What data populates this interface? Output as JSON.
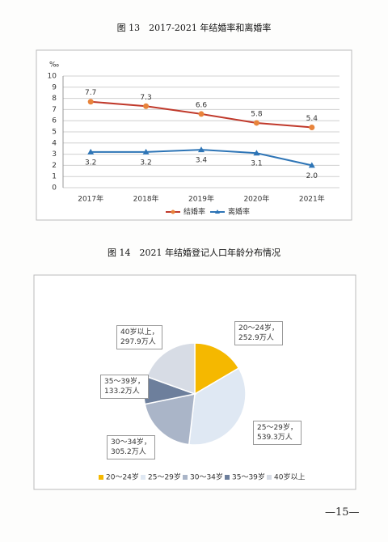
{
  "chart_data": [
    {
      "type": "line",
      "title": "图 13　2017-2021 年结婚率和离婚率",
      "y_unit": "‰",
      "categories": [
        "2017年",
        "2018年",
        "2019年",
        "2020年",
        "2021年"
      ],
      "series": [
        {
          "name": "结婚率",
          "color": "#c0392b",
          "marker_color": "#e8843c",
          "marker": "circle",
          "label_side": "above",
          "values": [
            7.7,
            7.3,
            6.6,
            5.8,
            5.4
          ]
        },
        {
          "name": "离婚率",
          "color": "#2e75b6",
          "marker_color": "#2e75b6",
          "marker": "triangle",
          "label_side": "below",
          "values": [
            3.2,
            3.2,
            3.4,
            3.1,
            2.0
          ],
          "value_labels": [
            "3.2",
            "3.2",
            "3.4",
            "3.1",
            "2.0"
          ]
        }
      ],
      "ylim": [
        0,
        10
      ],
      "yticks": [
        0,
        1,
        2,
        3,
        4,
        5,
        6,
        7,
        8,
        9,
        10
      ],
      "grid": true,
      "legend": "bottom"
    },
    {
      "type": "pie",
      "title": "图 14　2021 年结婚登记人口年龄分布情况",
      "categories": [
        "20～24岁",
        "25～29岁",
        "30～34岁",
        "35～39岁",
        "40岁以上"
      ],
      "values": [
        252.9,
        539.3,
        305.2,
        133.2,
        297.9
      ],
      "value_labels": [
        "20～24岁，\n252.9万人",
        "25～29岁，\n539.3万人",
        "30～34岁，\n305.2万人",
        "35～39岁，\n133.2万人",
        "40岁以上，\n297.9万人"
      ],
      "colors": [
        "#f5b800",
        "#dfe8f3",
        "#aab5c8",
        "#6d7f9c",
        "#d7dce5"
      ],
      "legend": "bottom"
    }
  ],
  "page_number": "—15—"
}
